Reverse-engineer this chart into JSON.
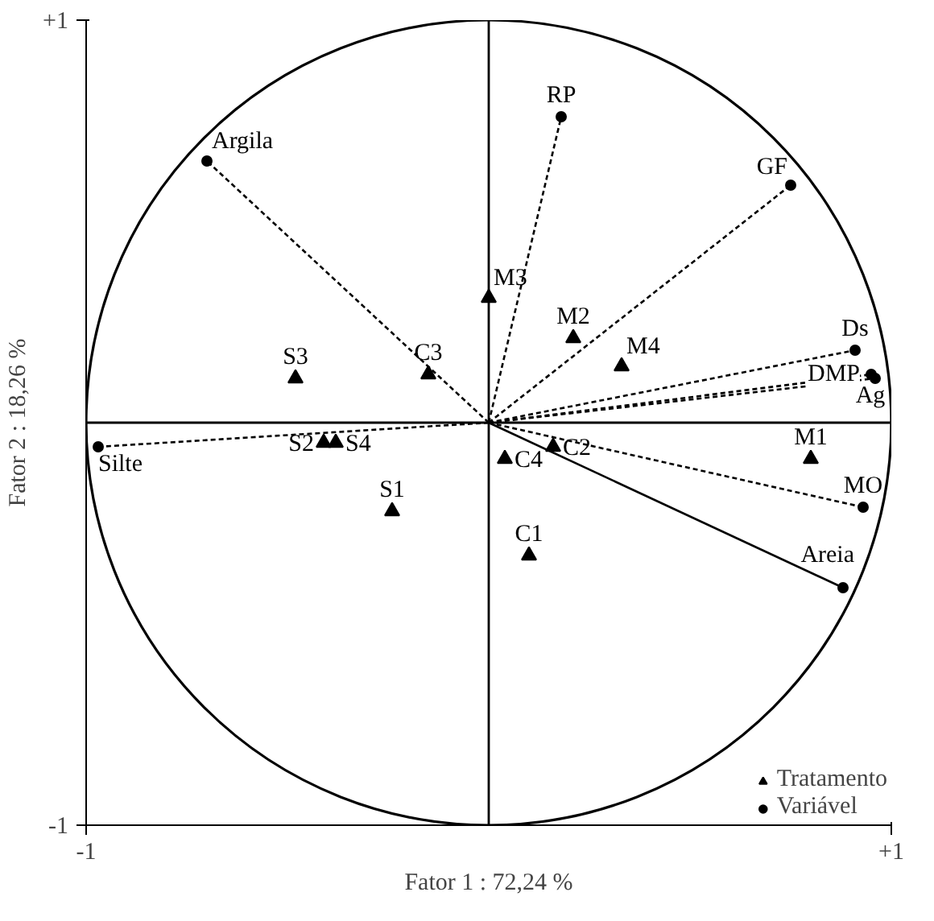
{
  "chart_data": {
    "type": "scatter",
    "xlabel": "Fator 1 : 72,24 %",
    "ylabel": "Fator 2 : 18,26 %",
    "xlim": [
      -1,
      1
    ],
    "ylim": [
      -1,
      1
    ],
    "xticks": [
      {
        "value": -1,
        "label": "-1"
      },
      {
        "value": 1,
        "label": "+1"
      }
    ],
    "yticks": [
      {
        "value": -1,
        "label": "-1"
      },
      {
        "value": 1,
        "label": "+1"
      }
    ],
    "legend": "bottom right",
    "series": [
      {
        "type": "line",
        "color": "#000000",
        "line_style": "dashed",
        "x": [
          0,
          -0.7
        ],
        "values": [
          0,
          0.65
        ]
      },
      {
        "type": "line",
        "color": "#000000",
        "line_style": "dashed",
        "x": [
          0,
          0.18
        ],
        "values": [
          0,
          0.76
        ]
      },
      {
        "type": "line",
        "color": "#000000",
        "line_style": "dashed",
        "x": [
          0,
          0.75
        ],
        "values": [
          0,
          0.59
        ]
      },
      {
        "type": "line",
        "color": "#000000",
        "line_style": "dashed",
        "x": [
          0,
          0.91
        ],
        "values": [
          0,
          0.18
        ]
      },
      {
        "type": "line",
        "color": "#000000",
        "line_style": "dashed",
        "x": [
          0,
          0.95
        ],
        "values": [
          0,
          0.12
        ]
      },
      {
        "type": "line",
        "color": "#000000",
        "line_style": "dashed",
        "x": [
          0,
          0.96
        ],
        "values": [
          0,
          0.11
        ]
      },
      {
        "type": "line",
        "color": "#000000",
        "line_style": "dashed",
        "x": [
          0,
          0.93
        ],
        "values": [
          0,
          -0.21
        ]
      },
      {
        "type": "line",
        "color": "#000000",
        "line_style": "solid",
        "x": [
          0,
          0.88
        ],
        "values": [
          0,
          -0.41
        ]
      },
      {
        "type": "line",
        "color": "#000000",
        "line_style": "dashed",
        "x": [
          0,
          -0.97
        ],
        "values": [
          0,
          -0.06
        ]
      },
      {
        "name": "Tratamento",
        "color": "#000000",
        "marker": "triangle",
        "x": [
          -0.48,
          -0.15,
          0.0,
          0.21,
          0.33,
          -0.41,
          -0.38,
          -0.24,
          0.04,
          0.16,
          0.8,
          0.1
        ],
        "values": [
          0.11,
          0.12,
          0.31,
          0.21,
          0.14,
          -0.05,
          -0.05,
          -0.22,
          -0.09,
          -0.06,
          -0.09,
          -0.33
        ]
      },
      {
        "name": "Variável",
        "color": "#000000",
        "marker": "circle",
        "x": [
          -0.7,
          0.18,
          0.75,
          0.91,
          0.95,
          0.96,
          0.93,
          0.88,
          -0.97
        ],
        "values": [
          0.65,
          0.76,
          0.59,
          0.18,
          0.12,
          0.11,
          -0.21,
          -0.41,
          -0.06
        ]
      }
    ],
    "annotations": [
      {
        "text": "S3",
        "x": -0.48,
        "y": 0.11
      },
      {
        "text": "C3",
        "x": -0.15,
        "y": 0.12
      },
      {
        "text": "M3",
        "x": 0.0,
        "y": 0.31
      },
      {
        "text": "M2",
        "x": 0.21,
        "y": 0.21
      },
      {
        "text": "M4",
        "x": 0.33,
        "y": 0.14
      },
      {
        "text": "S2",
        "x": -0.41,
        "y": -0.05
      },
      {
        "text": "S4",
        "x": -0.38,
        "y": -0.05
      },
      {
        "text": "S1",
        "x": -0.24,
        "y": -0.22
      },
      {
        "text": "C4",
        "x": 0.04,
        "y": -0.09
      },
      {
        "text": "C2",
        "x": 0.16,
        "y": -0.06
      },
      {
        "text": "M1",
        "x": 0.8,
        "y": -0.09
      },
      {
        "text": "C1",
        "x": 0.1,
        "y": -0.33
      },
      {
        "text": "Argila",
        "x": -0.7,
        "y": 0.65
      },
      {
        "text": "RP",
        "x": 0.18,
        "y": 0.76
      },
      {
        "text": "GF",
        "x": 0.75,
        "y": 0.59
      },
      {
        "text": "Ds",
        "x": 0.91,
        "y": 0.18
      },
      {
        "text": "DMP",
        "x": 0.95,
        "y": 0.12
      },
      {
        "text": "Ag",
        "x": 0.96,
        "y": 0.11
      },
      {
        "text": "MO",
        "x": 0.93,
        "y": -0.21
      },
      {
        "text": "Areia",
        "x": 0.88,
        "y": -0.41
      },
      {
        "text": "Silte",
        "x": -0.97,
        "y": -0.06
      }
    ]
  }
}
